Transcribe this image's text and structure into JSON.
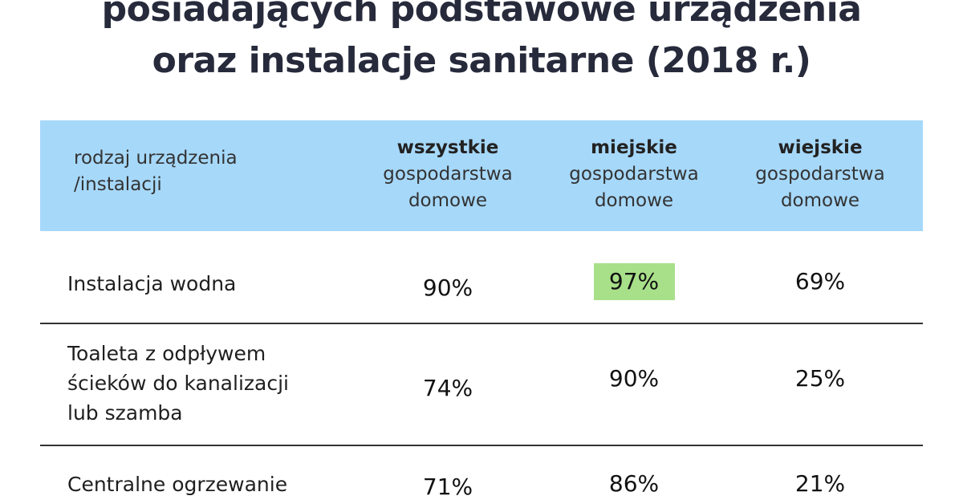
{
  "header": {
    "title": [
      "posiadających podstawowe urządzenia",
      "oraz instalacje sanitarne (2018 r.)"
    ]
  },
  "table": {
    "columns": [
      [
        "rodzaj urządzenia",
        "/instalacji"
      ],
      [
        "wszystkie",
        "gospodarstwa",
        "domowe"
      ],
      [
        "miejskie",
        "gospodarstwa",
        "domowe"
      ],
      [
        "wiejskie",
        "gospodarstwa",
        "domowe"
      ]
    ],
    "rows": [
      [
        [
          "Instalacja wodna"
        ],
        "90%",
        "97%",
        "69%"
      ],
      [
        [
          "Toaleta z odpływem",
          "ścieków do kanalizacji",
          "lub szamba"
        ],
        "74%",
        "90%",
        "25%"
      ],
      [
        [
          "Centralne ogrzewanie"
        ],
        "71%",
        "86%",
        "21%"
      ]
    ]
  }
}
